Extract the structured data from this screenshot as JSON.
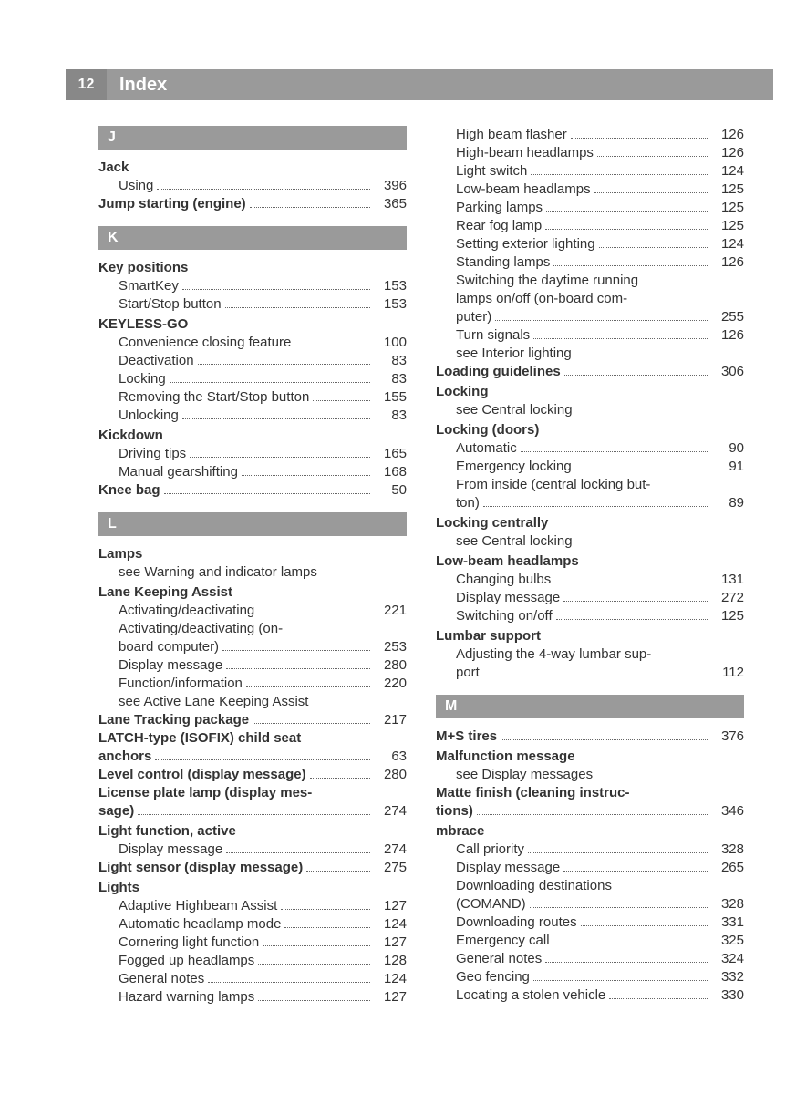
{
  "header": {
    "page_number": "12",
    "title": "Index"
  },
  "colors": {
    "header_bg": "#9a9a9a",
    "header_num_bg": "#888888",
    "text": "#333333",
    "leader": "#666666"
  },
  "sections": {
    "J": {
      "letter": "J",
      "entries": {
        "jack": {
          "heading": "Jack",
          "sub": [
            {
              "label": "Using",
              "page": "396"
            }
          ]
        },
        "jump_starting": {
          "heading_label": "Jump starting (engine)",
          "page": "365"
        }
      }
    },
    "K": {
      "letter": "K",
      "entries": {
        "key_positions": {
          "heading": "Key positions",
          "sub": [
            {
              "label": "SmartKey",
              "page": "153"
            },
            {
              "label": "Start/Stop button",
              "page": "153"
            }
          ]
        },
        "keyless_go": {
          "heading": "KEYLESS-GO",
          "sub": [
            {
              "label": "Convenience closing feature",
              "page": "100"
            },
            {
              "label": "Deactivation",
              "page": "83"
            },
            {
              "label": "Locking",
              "page": "83"
            },
            {
              "label": "Removing the Start/Stop button",
              "page": "155"
            },
            {
              "label": "Unlocking",
              "page": "83"
            }
          ]
        },
        "kickdown": {
          "heading": "Kickdown",
          "sub": [
            {
              "label": "Driving tips",
              "page": "165"
            },
            {
              "label": "Manual gearshifting",
              "page": "168"
            }
          ]
        },
        "knee_bag": {
          "heading_label": "Knee bag",
          "page": "50"
        }
      }
    },
    "L": {
      "letter": "L",
      "entries": {
        "lamps": {
          "heading": "Lamps",
          "see": "see Warning and indicator lamps"
        },
        "lane_keeping": {
          "heading": "Lane Keeping Assist",
          "sub": [
            {
              "label": "Activating/deactivating",
              "page": "221"
            },
            {
              "label_multi": [
                "Activating/deactivating (on-",
                "board computer)"
              ],
              "page": "253"
            },
            {
              "label": "Display message",
              "page": "280"
            },
            {
              "label": "Function/information",
              "page": "220"
            },
            {
              "see": "see Active Lane Keeping Assist"
            }
          ]
        },
        "lane_tracking": {
          "heading_label": "Lane Tracking package",
          "page": "217"
        },
        "latch": {
          "heading_label_multi": [
            "LATCH-type (ISOFIX) child seat",
            "anchors"
          ],
          "page": "63"
        },
        "level_control": {
          "heading_label": "Level control (display message)",
          "page": "280"
        },
        "license_plate": {
          "heading_label_multi": [
            "License plate lamp (display mes-",
            "sage)"
          ],
          "page": "274"
        },
        "light_function": {
          "heading": "Light function, active",
          "sub": [
            {
              "label": "Display message",
              "page": "274"
            }
          ]
        },
        "light_sensor": {
          "heading_label": "Light sensor (display message)",
          "page": "275"
        },
        "lights": {
          "heading": "Lights",
          "sub": [
            {
              "label": "Adaptive Highbeam Assist",
              "page": "127"
            },
            {
              "label": "Automatic headlamp mode",
              "page": "124"
            },
            {
              "label": "Cornering light function",
              "page": "127"
            },
            {
              "label": "Fogged up headlamps",
              "page": "128"
            },
            {
              "label": "General notes",
              "page": "124"
            },
            {
              "label": "Hazard warning lamps",
              "page": "127"
            },
            {
              "label": "High beam flasher",
              "page": "126"
            },
            {
              "label": "High-beam headlamps",
              "page": "126"
            },
            {
              "label": "Light switch",
              "page": "124"
            },
            {
              "label": "Low-beam headlamps",
              "page": "125"
            },
            {
              "label": "Parking lamps",
              "page": "125"
            },
            {
              "label": "Rear fog lamp",
              "page": "125"
            },
            {
              "label": "Setting exterior lighting",
              "page": "124"
            },
            {
              "label": "Standing lamps",
              "page": "126"
            },
            {
              "label_multi": [
                "Switching the daytime running",
                "lamps on/off (on-board com-",
                "puter)"
              ],
              "page": "255"
            },
            {
              "label": "Turn signals",
              "page": "126"
            },
            {
              "see": "see Interior lighting"
            }
          ]
        },
        "loading_guidelines": {
          "heading_label": "Loading guidelines",
          "page": "306"
        },
        "locking": {
          "heading": "Locking",
          "see": "see Central locking"
        },
        "locking_doors": {
          "heading": "Locking (doors)",
          "sub": [
            {
              "label": "Automatic",
              "page": "90"
            },
            {
              "label": "Emergency locking",
              "page": "91"
            },
            {
              "label_multi": [
                "From inside (central locking but-",
                "ton)"
              ],
              "page": "89"
            }
          ]
        },
        "locking_centrally": {
          "heading": "Locking centrally",
          "see": "see Central locking"
        },
        "low_beam": {
          "heading": "Low-beam headlamps",
          "sub": [
            {
              "label": "Changing bulbs",
              "page": "131"
            },
            {
              "label": "Display message",
              "page": "272"
            },
            {
              "label": "Switching on/off",
              "page": "125"
            }
          ]
        },
        "lumbar": {
          "heading": "Lumbar support",
          "sub": [
            {
              "label_multi": [
                "Adjusting the 4-way lumbar sup-",
                "port"
              ],
              "page": "112"
            }
          ]
        }
      }
    },
    "M": {
      "letter": "M",
      "entries": {
        "ms_tires": {
          "heading_label": "M+S tires",
          "page": "376"
        },
        "malfunction": {
          "heading": "Malfunction message",
          "see": "see Display messages"
        },
        "matte": {
          "heading_label_multi": [
            "Matte finish (cleaning instruc-",
            "tions)"
          ],
          "page": "346"
        },
        "mbrace": {
          "heading": "mbrace",
          "sub": [
            {
              "label": "Call priority",
              "page": "328"
            },
            {
              "label": "Display message",
              "page": "265"
            },
            {
              "label_multi": [
                "Downloading destinations",
                "(COMAND)"
              ],
              "page": "328"
            },
            {
              "label": "Downloading routes",
              "page": "331"
            },
            {
              "label": "Emergency call",
              "page": "325"
            },
            {
              "label": "General notes",
              "page": "324"
            },
            {
              "label": "Geo fencing",
              "page": "332"
            },
            {
              "label": "Locating a stolen vehicle",
              "page": "330"
            }
          ]
        }
      }
    }
  }
}
